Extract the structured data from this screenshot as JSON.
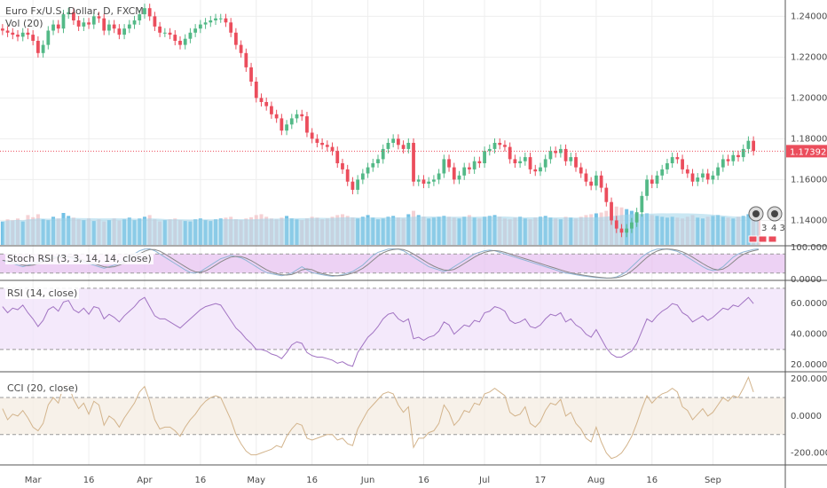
{
  "main": {
    "symbol_title": "Euro Fx/U.S. Dollar, D, FXCM",
    "volume_label": "Vol (20)",
    "current_price": "1.17392",
    "events": {
      "label_a": "3",
      "label_b": "4 3"
    }
  },
  "colors": {
    "up": "#53b987",
    "down": "#eb4d5c",
    "volume_ma": "#9fd3ea",
    "volume_bar": "#5ab6e0",
    "stoch_bg": "#e6bff0",
    "rsi_bg": "#efe0fa",
    "cci_bg": "#f3ebe0",
    "rsi_line": "#a173c2",
    "cci_line": "#d3b48c",
    "price_line": "#eb4d5c"
  },
  "panels": {
    "stoch_label": "Stoch RSI (3, 3, 14, 14, close)",
    "rsi_label": "RSI (14, close)",
    "cci_label": "CCI (20, close)"
  },
  "chart_data": [
    {
      "type": "candlestick",
      "title": "Euro Fx/U.S. Dollar, D, FXCM",
      "x_tick_labels": [
        "Mar",
        "16",
        "Apr",
        "16",
        "May",
        "16",
        "Jun",
        "16",
        "Jul",
        "17",
        "Aug",
        "16",
        "Sep"
      ],
      "y_ticks": [
        "1.24000",
        "1.22000",
        "1.20000",
        "1.18000",
        "1.16000",
        "1.14000"
      ],
      "ylim": [
        1.128,
        1.248
      ],
      "last_price": 1.17392,
      "close_series": [
        1.233,
        1.232,
        1.231,
        1.23,
        1.232,
        1.231,
        1.228,
        1.222,
        1.226,
        1.233,
        1.236,
        1.234,
        1.241,
        1.242,
        1.238,
        1.235,
        1.237,
        1.236,
        1.24,
        1.239,
        1.233,
        1.236,
        1.234,
        1.231,
        1.234,
        1.236,
        1.238,
        1.241,
        1.244,
        1.24,
        1.235,
        1.232,
        1.232,
        1.231,
        1.228,
        1.226,
        1.229,
        1.232,
        1.234,
        1.236,
        1.237,
        1.238,
        1.239,
        1.239,
        1.237,
        1.232,
        1.226,
        1.222,
        1.215,
        1.208,
        1.2,
        1.198,
        1.196,
        1.192,
        1.19,
        1.184,
        1.187,
        1.19,
        1.192,
        1.191,
        1.183,
        1.18,
        1.178,
        1.177,
        1.176,
        1.174,
        1.168,
        1.165,
        1.159,
        1.155,
        1.16,
        1.163,
        1.166,
        1.168,
        1.17,
        1.175,
        1.178,
        1.18,
        1.177,
        1.175,
        1.178,
        1.159,
        1.16,
        1.158,
        1.159,
        1.16,
        1.163,
        1.17,
        1.166,
        1.16,
        1.162,
        1.166,
        1.165,
        1.169,
        1.168,
        1.174,
        1.175,
        1.178,
        1.177,
        1.176,
        1.17,
        1.168,
        1.169,
        1.171,
        1.165,
        1.164,
        1.166,
        1.17,
        1.174,
        1.173,
        1.175,
        1.169,
        1.171,
        1.166,
        1.163,
        1.159,
        1.157,
        1.162,
        1.156,
        1.149,
        1.14,
        1.136,
        1.134,
        1.136,
        1.139,
        1.144,
        1.152,
        1.16,
        1.158,
        1.162,
        1.165,
        1.168,
        1.171,
        1.17,
        1.165,
        1.163,
        1.159,
        1.161,
        1.163,
        1.16,
        1.162,
        1.166,
        1.17,
        1.169,
        1.172,
        1.171,
        1.175,
        1.179,
        1.174
      ]
    },
    {
      "type": "bar",
      "title": "Vol (20)",
      "volume_level": [
        0.55,
        0.6,
        0.58,
        0.62,
        0.55,
        0.7,
        0.65,
        0.72,
        0.6,
        0.58,
        0.66,
        0.62,
        0.75,
        0.68,
        0.64,
        0.6,
        0.58,
        0.62,
        0.56,
        0.6,
        0.55,
        0.58,
        0.62,
        0.57,
        0.6,
        0.64,
        0.58,
        0.62,
        0.66,
        0.7,
        0.6,
        0.55,
        0.58,
        0.6,
        0.62,
        0.58,
        0.56,
        0.55,
        0.6,
        0.62,
        0.58,
        0.56,
        0.6,
        0.62,
        0.64,
        0.66,
        0.6,
        0.58,
        0.62,
        0.65,
        0.7,
        0.72,
        0.66,
        0.62,
        0.6,
        0.64,
        0.68,
        0.62,
        0.6,
        0.58,
        0.62,
        0.66,
        0.64,
        0.6,
        0.62,
        0.66,
        0.7,
        0.72,
        0.68,
        0.64,
        0.62,
        0.66,
        0.7,
        0.64,
        0.6,
        0.62,
        0.66,
        0.68,
        0.64,
        0.62,
        0.72,
        0.8,
        0.7,
        0.66,
        0.62,
        0.64,
        0.66,
        0.68,
        0.66,
        0.64,
        0.62,
        0.66,
        0.7,
        0.64,
        0.62,
        0.66,
        0.68,
        0.7,
        0.66,
        0.62,
        0.6,
        0.64,
        0.66,
        0.62,
        0.6,
        0.64,
        0.66,
        0.68,
        0.64,
        0.62,
        0.6,
        0.66,
        0.64,
        0.62,
        0.66,
        0.7,
        0.72,
        0.74,
        0.76,
        0.8,
        0.85,
        0.9,
        0.88,
        0.84,
        0.8,
        0.76,
        0.72,
        0.74,
        0.7,
        0.68,
        0.66,
        0.64,
        0.66,
        0.64,
        0.62,
        0.66,
        0.7,
        0.64,
        0.62,
        0.66,
        0.68,
        0.7,
        0.66,
        0.64,
        0.62,
        0.66,
        0.68,
        0.72,
        0.8,
        0.76
      ]
    },
    {
      "type": "line",
      "title": "Stoch RSI (3, 3, 14, 14, close)",
      "y_ticks": [
        "100.0000",
        "0.0000"
      ],
      "ylim": [
        0,
        100
      ],
      "bands": [
        20,
        80
      ],
      "k": [
        60,
        55,
        50,
        45,
        40,
        45,
        50,
        55,
        60,
        65,
        70,
        72,
        74,
        70,
        65,
        60,
        55,
        50,
        45,
        40,
        35,
        40,
        45,
        50,
        60,
        70,
        80,
        90,
        95,
        96,
        90,
        80,
        70,
        60,
        50,
        40,
        30,
        22,
        20,
        25,
        35,
        45,
        55,
        65,
        70,
        75,
        72,
        68,
        60,
        50,
        40,
        30,
        22,
        18,
        15,
        12,
        15,
        20,
        30,
        40,
        30,
        22,
        18,
        15,
        12,
        10,
        12,
        15,
        20,
        25,
        35,
        45,
        60,
        75,
        85,
        90,
        95,
        96,
        95,
        90,
        80,
        70,
        60,
        50,
        40,
        35,
        30,
        25,
        30,
        40,
        50,
        60,
        70,
        80,
        85,
        90,
        92,
        90,
        85,
        80,
        75,
        70,
        65,
        60,
        55,
        50,
        45,
        40,
        35,
        30,
        25,
        20,
        18,
        15,
        12,
        10,
        8,
        6,
        5,
        4,
        5,
        8,
        15,
        25,
        40,
        55,
        70,
        82,
        90,
        95,
        96,
        95,
        92,
        88,
        80,
        70,
        60,
        50,
        40,
        32,
        28,
        30,
        40,
        55,
        70,
        80,
        86,
        90,
        94,
        96
      ]
    },
    {
      "type": "line",
      "title": "RSI (14, close)",
      "y_ticks": [
        "60.0000",
        "40.0000",
        "20.0000"
      ],
      "ylim": [
        16,
        74
      ],
      "bands": [
        30,
        70
      ],
      "values": [
        58,
        54,
        57,
        56,
        59,
        54,
        50,
        45,
        49,
        56,
        58,
        55,
        61,
        62,
        56,
        54,
        57,
        53,
        58,
        57,
        50,
        53,
        51,
        48,
        52,
        55,
        58,
        62,
        64,
        58,
        52,
        50,
        50,
        48,
        46,
        44,
        47,
        50,
        53,
        56,
        58,
        59,
        60,
        59,
        54,
        49,
        44,
        41,
        37,
        34,
        30,
        30,
        29,
        27,
        26,
        24,
        28,
        33,
        35,
        34,
        28,
        26,
        25,
        25,
        24,
        23,
        21,
        22,
        20,
        19,
        28,
        33,
        38,
        41,
        45,
        50,
        53,
        54,
        50,
        48,
        50,
        37,
        38,
        36,
        38,
        39,
        42,
        48,
        46,
        40,
        43,
        46,
        45,
        49,
        48,
        54,
        55,
        58,
        57,
        55,
        49,
        47,
        48,
        50,
        45,
        44,
        46,
        50,
        53,
        52,
        54,
        48,
        50,
        46,
        44,
        40,
        38,
        43,
        37,
        31,
        27,
        25,
        25,
        27,
        29,
        34,
        42,
        50,
        48,
        52,
        55,
        57,
        60,
        59,
        54,
        52,
        48,
        50,
        52,
        49,
        51,
        54,
        57,
        56,
        59,
        58,
        61,
        64,
        60
      ]
    },
    {
      "type": "line",
      "title": "CCI (20, close)",
      "y_ticks": [
        "200.0000",
        "0.0000",
        "-200.0000"
      ],
      "ylim": [
        -260,
        230
      ],
      "bands": [
        -100,
        100
      ],
      "values": [
        40,
        -20,
        10,
        0,
        30,
        -10,
        -60,
        -80,
        -40,
        60,
        100,
        70,
        160,
        170,
        90,
        40,
        70,
        10,
        80,
        60,
        -50,
        0,
        -20,
        -60,
        -10,
        30,
        70,
        130,
        160,
        80,
        -20,
        -70,
        -60,
        -60,
        -80,
        -110,
        -60,
        -20,
        10,
        50,
        80,
        100,
        110,
        100,
        40,
        -20,
        -100,
        -150,
        -190,
        -210,
        -210,
        -200,
        -190,
        -180,
        -160,
        -170,
        -110,
        -70,
        -40,
        -50,
        -120,
        -130,
        -120,
        -110,
        -100,
        -100,
        -130,
        -120,
        -150,
        -160,
        -70,
        -20,
        30,
        60,
        90,
        120,
        130,
        120,
        60,
        20,
        50,
        -170,
        -120,
        -120,
        -90,
        -80,
        -40,
        60,
        20,
        -50,
        -20,
        30,
        20,
        70,
        60,
        120,
        130,
        150,
        130,
        110,
        20,
        0,
        10,
        50,
        -40,
        -60,
        -30,
        30,
        70,
        60,
        90,
        0,
        20,
        -40,
        -70,
        -120,
        -140,
        -60,
        -140,
        -200,
        -230,
        -220,
        -200,
        -160,
        -110,
        -40,
        40,
        110,
        70,
        100,
        120,
        130,
        150,
        130,
        50,
        30,
        -20,
        10,
        40,
        0,
        20,
        60,
        100,
        80,
        110,
        100,
        150,
        210,
        130
      ]
    }
  ]
}
